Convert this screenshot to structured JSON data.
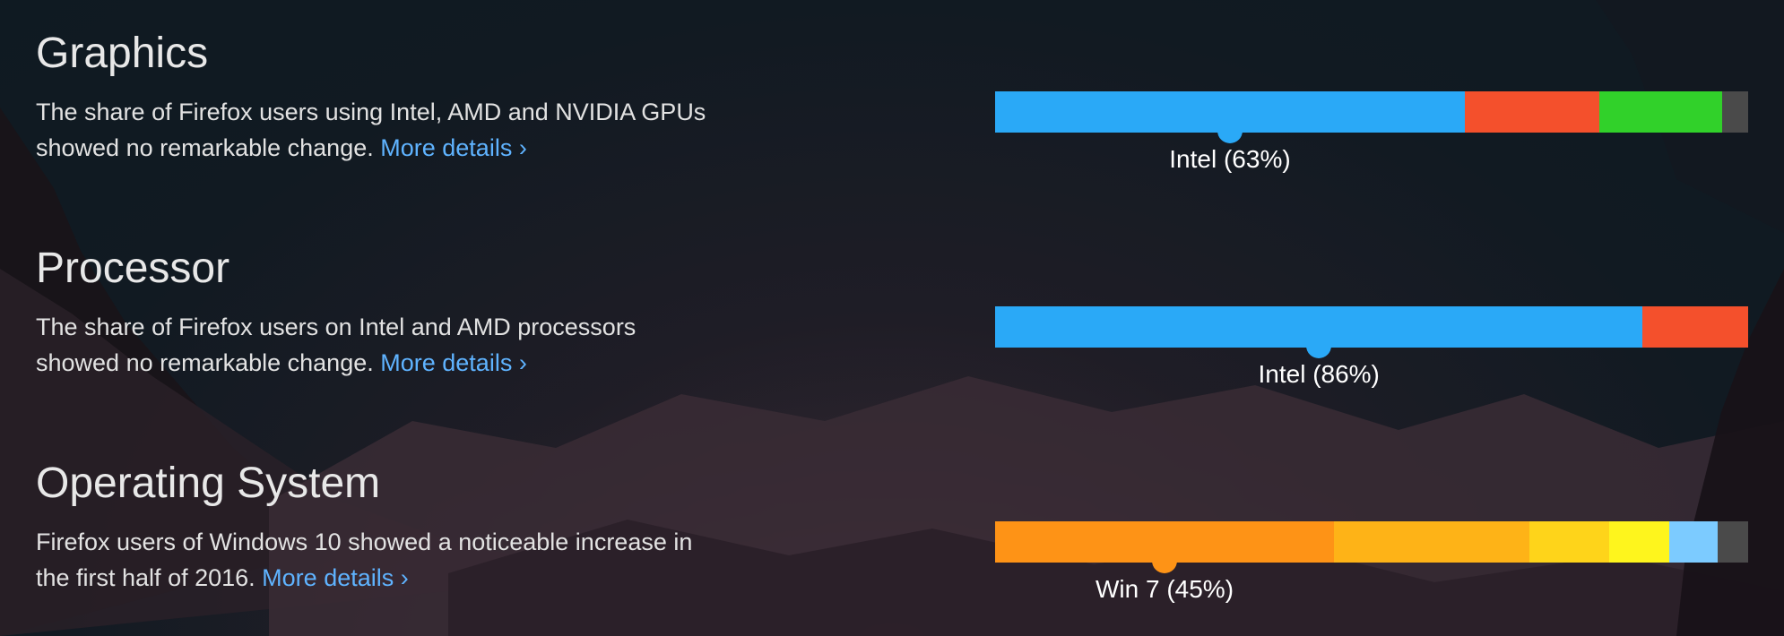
{
  "sections": [
    {
      "title": "Graphics",
      "description": "The share of Firefox users using Intel, AMD and NVIDIA GPUs showed no remarkable change.",
      "link_label": "More details ›",
      "highlight_label": "Intel (63%)",
      "highlight_index": 0,
      "segments": [
        {
          "share": 63,
          "color": "#2aa9f7"
        },
        {
          "share": 18,
          "color": "#f4502c"
        },
        {
          "share": 16.5,
          "color": "#31d12a"
        },
        {
          "share": 3.5,
          "color": "#4a4a4a"
        }
      ]
    },
    {
      "title": "Processor",
      "description": "The share of Firefox users on Intel and AMD processors showed no remarkable change.",
      "link_label": "More details ›",
      "highlight_label": "Intel (86%)",
      "highlight_index": 0,
      "segments": [
        {
          "share": 86,
          "color": "#2aa9f7"
        },
        {
          "share": 14,
          "color": "#f4502c"
        }
      ]
    },
    {
      "title": "Operating System",
      "description": "Firefox users of Windows 10 showed a noticeable increase in the first half of 2016.",
      "link_label": "More details ›",
      "highlight_label": "Win 7 (45%)",
      "highlight_index": 0,
      "segments": [
        {
          "share": 45,
          "color": "#fe9316"
        },
        {
          "share": 26,
          "color": "#feb317"
        },
        {
          "share": 10.5,
          "color": "#fed41a"
        },
        {
          "share": 8,
          "color": "#fef51d"
        },
        {
          "share": 6.5,
          "color": "#7ccbff"
        },
        {
          "share": 4,
          "color": "#4a4a4a"
        }
      ]
    }
  ]
}
